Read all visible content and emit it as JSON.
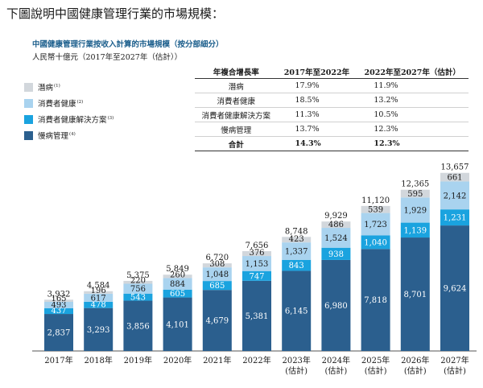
{
  "heading": "下圖說明中國健康管理行業的市場規模：",
  "chart_data": {
    "type": "bar",
    "stacked": true,
    "title": "中國健康管理行業按收入計算的市場規模（按分部細分）",
    "unit_label": "人民幣十億元（2017年至2027年（估計））",
    "categories": [
      "2017年",
      "2018年",
      "2019年",
      "2020年",
      "2021年",
      "2022年",
      "2023年",
      "2024年",
      "2025年",
      "2026年",
      "2027年"
    ],
    "category_notes": [
      "",
      "",
      "",
      "",
      "",
      "",
      "(估計)",
      "(估計)",
      "(估計)",
      "(估計)",
      "(估計)"
    ],
    "series": [
      {
        "name": "慢病管理",
        "note": "(4)",
        "color": "#2b5f8e",
        "label_color": "#ffffff",
        "values": [
          2837,
          3293,
          3856,
          4101,
          4679,
          5381,
          6145,
          6980,
          7818,
          8701,
          9624
        ]
      },
      {
        "name": "消費者健康解決方案",
        "note": "(3)",
        "color": "#1aa3df",
        "label_color": "#ffffff",
        "values": [
          437,
          478,
          543,
          605,
          685,
          747,
          843,
          938,
          1040,
          1139,
          1231
        ]
      },
      {
        "name": "消費者健康",
        "note": "(2)",
        "color": "#a9d3ef",
        "label_color": "#1a1a1a",
        "values": [
          493,
          617,
          756,
          884,
          1048,
          1153,
          1337,
          1524,
          1723,
          1929,
          2142
        ]
      },
      {
        "name": "潛病",
        "note": "(1)",
        "color": "#d2d7dc",
        "label_color": "#1a1a1a",
        "values": [
          165,
          196,
          220,
          260,
          308,
          376,
          423,
          486,
          539,
          595,
          661
        ]
      }
    ],
    "totals": [
      3932,
      4584,
      5375,
      5849,
      6720,
      7656,
      8748,
      9929,
      11120,
      12365,
      13657
    ],
    "ylim": [
      0,
      14000
    ],
    "grid": false,
    "legend_position": "top-left"
  },
  "cagr_table": {
    "header": [
      "年複合增長率",
      "2017年至2022年",
      "2022年至2027年（估計）"
    ],
    "rows": [
      {
        "segment": "潛病",
        "a": "17.9%",
        "b": "11.9%"
      },
      {
        "segment": "消費者健康",
        "a": "18.5%",
        "b": "13.2%"
      },
      {
        "segment": "消費者健康解決方案",
        "a": "11.3%",
        "b": "10.5%"
      },
      {
        "segment": "慢病管理",
        "a": "13.7%",
        "b": "12.3%"
      }
    ],
    "total": {
      "segment": "合計",
      "a": "14.3%",
      "b": "12.3%"
    }
  }
}
